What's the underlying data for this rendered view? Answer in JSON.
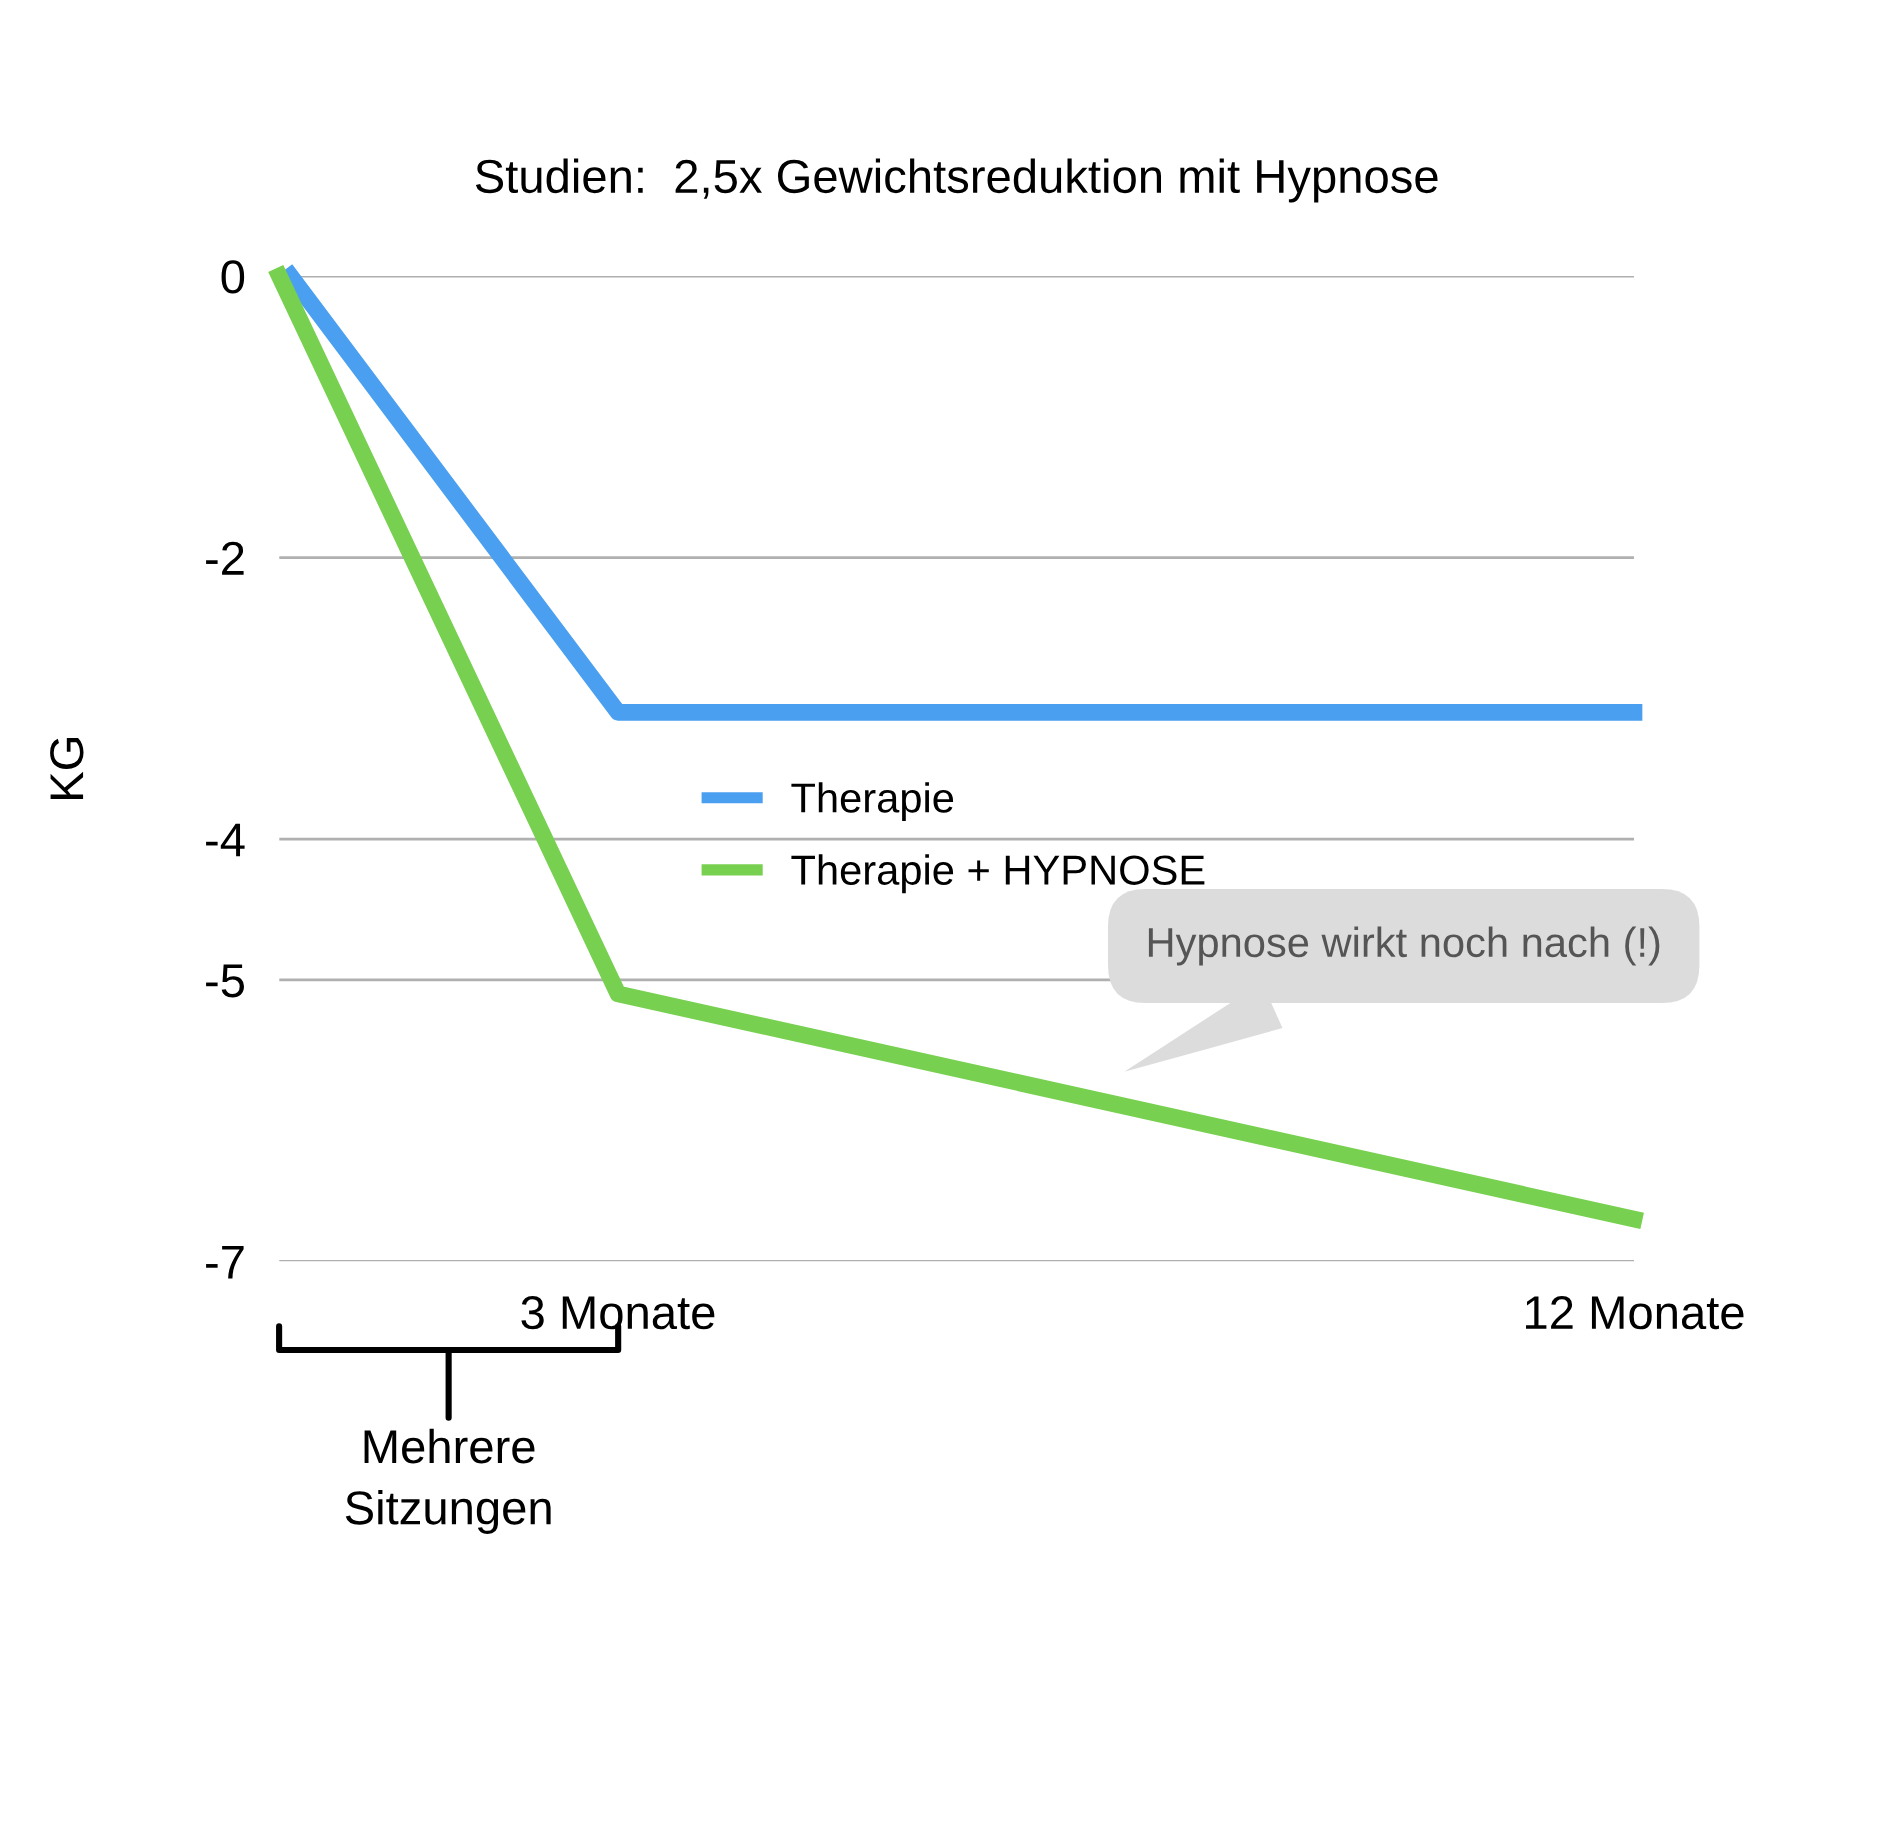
{
  "chart_data": {
    "type": "line",
    "title": "Studien:  2,5x Gewichtsreduktion mit Hypnose",
    "ylabel": "KG",
    "xlim": [
      0,
      12
    ],
    "xticks": [
      {
        "value": 3,
        "label": "3 Monate"
      },
      {
        "value": 12,
        "label": "12 Monate"
      }
    ],
    "ylim": [
      -7,
      0
    ],
    "yticks": [
      0,
      -2,
      -4,
      -5,
      -7
    ],
    "legend": "center",
    "grid": "y",
    "series": [
      {
        "name": "Therapie",
        "color": "#4a9ff0",
        "x": [
          0.1,
          3,
          12
        ],
        "values": [
          0,
          -3.1,
          -3.1
        ]
      },
      {
        "name": "Therapie + HYPNOSE",
        "color": "#77d04f",
        "x": [
          0,
          3,
          12
        ],
        "values": [
          0,
          -5.1,
          -6.7
        ]
      }
    ],
    "annotations": [
      "Hypnose wirkt noch nach (!)",
      "Mehrere Sitzungen"
    ]
  }
}
